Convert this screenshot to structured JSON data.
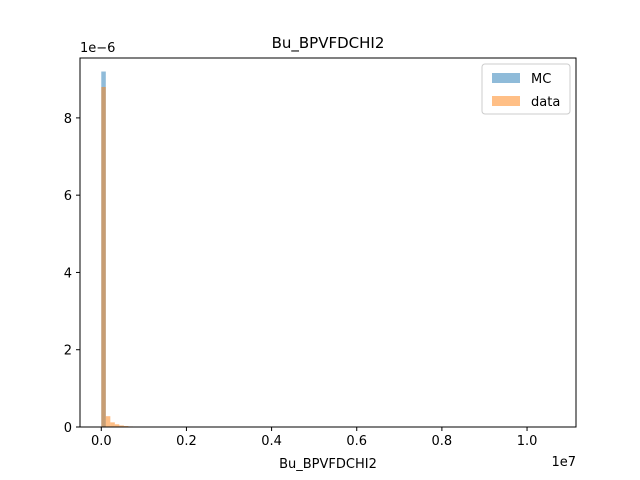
{
  "chart_data": {
    "type": "bar",
    "title": "Bu_BPVFDCHI2",
    "xlabel": "Bu_BPVFDCHI2",
    "ylabel": "",
    "x_offset_label": "1e7",
    "y_offset_label": "1e−6",
    "x_scale_factor": 10000000,
    "y_scale_factor": 1e-06,
    "xlim": [
      -0.05,
      1.115
    ],
    "ylim": [
      0,
      9.55
    ],
    "x_ticks": [
      0.0,
      0.2,
      0.4,
      0.6,
      0.8,
      1.0
    ],
    "x_tick_labels": [
      "0.0",
      "0.2",
      "0.4",
      "0.6",
      "0.8",
      "1.0"
    ],
    "y_ticks": [
      0,
      2,
      4,
      6,
      8
    ],
    "y_tick_labels": [
      "0",
      "2",
      "4",
      "6",
      "8"
    ],
    "bin_width": 0.0106,
    "legend_position": "top-right",
    "series": [
      {
        "name": "MC",
        "color": "#1f77b4",
        "opacity": 0.5,
        "bins": [
          [
            0.0,
            9.2
          ]
        ]
      },
      {
        "name": "data",
        "color": "#ff7f0e",
        "opacity": 0.5,
        "bins": [
          [
            0.0,
            8.8
          ],
          [
            0.0106,
            0.28
          ],
          [
            0.0212,
            0.12
          ],
          [
            0.0318,
            0.07
          ],
          [
            0.0424,
            0.04
          ],
          [
            0.053,
            0.025
          ],
          [
            0.0636,
            0.015
          ],
          [
            0.0742,
            0.01
          ]
        ]
      }
    ]
  }
}
